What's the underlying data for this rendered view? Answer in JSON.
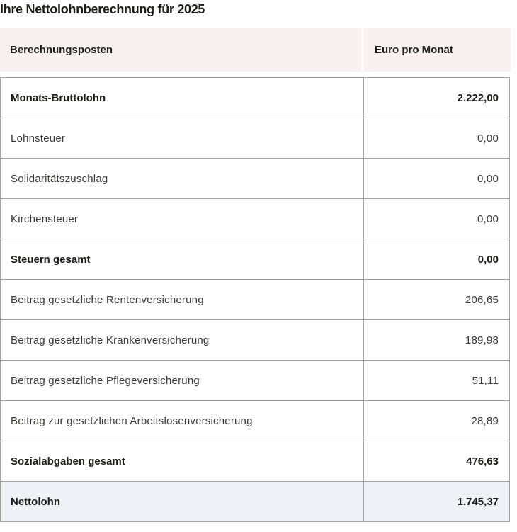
{
  "page": {
    "title": "Ihre Nettolohnberechnung für 2025"
  },
  "table": {
    "columns": [
      {
        "label": "Berechnungsposten"
      },
      {
        "label": "Euro pro Monat"
      }
    ],
    "rows": [
      {
        "label": "Monats-Bruttolohn",
        "value": "2.222,00",
        "bold": true,
        "highlight": false
      },
      {
        "label": "Lohnsteuer",
        "value": "0,00",
        "bold": false,
        "highlight": false
      },
      {
        "label": "Solidaritätszuschlag",
        "value": "0,00",
        "bold": false,
        "highlight": false
      },
      {
        "label": "Kirchensteuer",
        "value": "0,00",
        "bold": false,
        "highlight": false
      },
      {
        "label": "Steuern gesamt",
        "value": "0,00",
        "bold": true,
        "highlight": false
      },
      {
        "label": "Beitrag gesetzliche Rentenversicherung",
        "value": "206,65",
        "bold": false,
        "highlight": false
      },
      {
        "label": "Beitrag gesetzliche Krankenversicherung",
        "value": "189,98",
        "bold": false,
        "highlight": false
      },
      {
        "label": "Beitrag gesetzliche Pflegeversicherung",
        "value": "51,11",
        "bold": false,
        "highlight": false
      },
      {
        "label": "Beitrag zur gesetzlichen Arbeitslosenversicherung",
        "value": "28,89",
        "bold": false,
        "highlight": false
      },
      {
        "label": "Sozialabgaben gesamt",
        "value": "476,63",
        "bold": true,
        "highlight": false
      },
      {
        "label": "Nettolohn",
        "value": "1.745,37",
        "bold": true,
        "highlight": true
      }
    ]
  },
  "colors": {
    "header_background": "#f8f1ef",
    "highlight_background": "#eef2f6",
    "border": "#a3a3a3",
    "text": "#3a3a39",
    "text_strong": "#1d1d1b"
  }
}
